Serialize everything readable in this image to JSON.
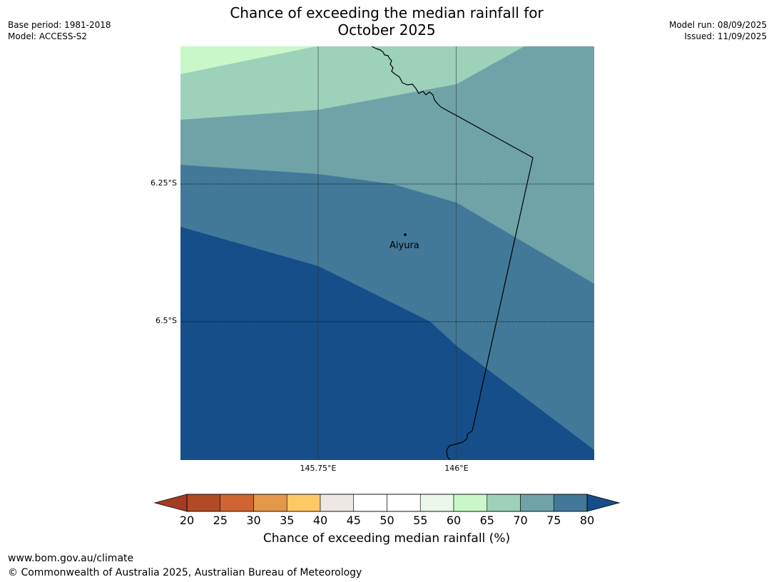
{
  "title": {
    "line1": "Chance of exceeding the median rainfall for",
    "line2": "October 2025"
  },
  "meta_left": {
    "base_period": "Base period: 1981-2018",
    "model": "Model: ACCESS-S2"
  },
  "meta_right": {
    "model_run": "Model run: 08/09/2025",
    "issued": "Issued: 11/09/2025"
  },
  "map": {
    "lat_labels": [
      "6.25°S",
      "6.5°S"
    ],
    "lon_labels": [
      "145.75°E",
      "146°E"
    ],
    "town": "Aiyura",
    "zone_colors": {
      "65-70": "#c9f7c9",
      "70-75": "#9dd1ba",
      "75-80": "#6fa3a8",
      "80-85": "#427999",
      "85+": "#154e88"
    }
  },
  "colorbar": {
    "ticks": [
      "20",
      "25",
      "30",
      "35",
      "40",
      "45",
      "50",
      "55",
      "60",
      "65",
      "70",
      "75",
      "80"
    ],
    "colors": [
      "#b24a26",
      "#cf6533",
      "#e39748",
      "#fec964",
      "#ede8e4",
      "#ffffff",
      "#ffffff",
      "#eaf7ea",
      "#c9f7c9",
      "#9dd1ba",
      "#6fa3a8",
      "#427999"
    ],
    "under_color": "#a33c22",
    "over_color": "#154e88",
    "label": "Chance of exceeding median rainfall (%)"
  },
  "footer": {
    "url": "www.bom.gov.au/climate",
    "copyright": "© Commonwealth of Australia 2025, Australian Bureau of Meteorology"
  }
}
